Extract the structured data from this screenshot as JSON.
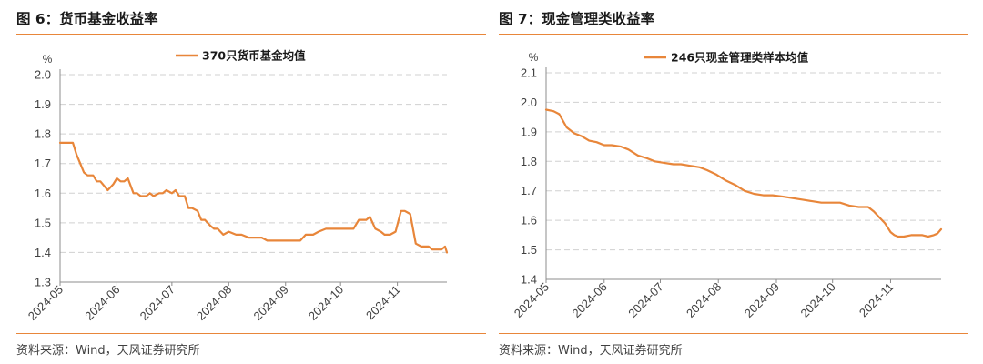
{
  "panels": [
    {
      "title": "图 6：货币基金收益率",
      "source": "资料来源：Wind，天风证券研究所",
      "color": "#e8863a"
    },
    {
      "title": "图 7：现金管理类收益率",
      "source": "资料来源：Wind，天风证券研究所",
      "color": "#e8863a"
    }
  ],
  "chart_data": [
    {
      "type": "line",
      "title": "",
      "ylabel": "%",
      "xlabel": "",
      "ylim": [
        1.3,
        2.0
      ],
      "yticks": [
        "1.3",
        "1.4",
        "1.5",
        "1.6",
        "1.7",
        "1.8",
        "1.9",
        "2.0"
      ],
      "xticks": [
        "2024-05",
        "2024-06",
        "2024-07",
        "2024-08",
        "2024-09",
        "2024-10",
        "2024-11"
      ],
      "xlim": [
        "2024-05-01",
        "2024-11-28"
      ],
      "grid": "horizontal dashed",
      "legend_position": "top-center",
      "series": [
        {
          "name": "370只货币基金均值",
          "color": "#e8863a",
          "x": [
            "2024-05-01",
            "2024-05-05",
            "2024-05-08",
            "2024-05-10",
            "2024-05-12",
            "2024-05-14",
            "2024-05-16",
            "2024-05-19",
            "2024-05-21",
            "2024-05-23",
            "2024-05-27",
            "2024-05-30",
            "2024-06-01",
            "2024-06-03",
            "2024-06-05",
            "2024-06-07",
            "2024-06-10",
            "2024-06-12",
            "2024-06-14",
            "2024-06-17",
            "2024-06-19",
            "2024-06-21",
            "2024-06-24",
            "2024-06-26",
            "2024-06-28",
            "2024-07-01",
            "2024-07-03",
            "2024-07-05",
            "2024-07-08",
            "2024-07-10",
            "2024-07-12",
            "2024-07-15",
            "2024-07-17",
            "2024-07-19",
            "2024-07-22",
            "2024-07-24",
            "2024-07-26",
            "2024-07-29",
            "2024-08-01",
            "2024-08-05",
            "2024-08-08",
            "2024-08-12",
            "2024-08-15",
            "2024-08-19",
            "2024-08-22",
            "2024-08-26",
            "2024-08-29",
            "2024-09-02",
            "2024-09-05",
            "2024-09-09",
            "2024-09-12",
            "2024-09-16",
            "2024-09-19",
            "2024-09-23",
            "2024-09-26",
            "2024-09-30",
            "2024-10-03",
            "2024-10-08",
            "2024-10-11",
            "2024-10-15",
            "2024-10-17",
            "2024-10-20",
            "2024-10-23",
            "2024-10-25",
            "2024-10-28",
            "2024-10-31",
            "2024-11-03",
            "2024-11-05",
            "2024-11-08",
            "2024-11-11",
            "2024-11-14",
            "2024-11-16",
            "2024-11-18",
            "2024-11-20",
            "2024-11-22",
            "2024-11-25",
            "2024-11-27",
            "2024-11-28"
          ],
          "values": [
            1.77,
            1.77,
            1.77,
            1.73,
            1.7,
            1.67,
            1.66,
            1.66,
            1.64,
            1.64,
            1.61,
            1.63,
            1.65,
            1.64,
            1.64,
            1.65,
            1.6,
            1.6,
            1.59,
            1.59,
            1.6,
            1.59,
            1.6,
            1.6,
            1.61,
            1.6,
            1.61,
            1.59,
            1.59,
            1.55,
            1.55,
            1.54,
            1.51,
            1.51,
            1.49,
            1.48,
            1.48,
            1.46,
            1.47,
            1.46,
            1.46,
            1.45,
            1.45,
            1.45,
            1.44,
            1.44,
            1.44,
            1.44,
            1.44,
            1.44,
            1.46,
            1.46,
            1.47,
            1.48,
            1.48,
            1.48,
            1.48,
            1.48,
            1.51,
            1.51,
            1.52,
            1.48,
            1.47,
            1.46,
            1.46,
            1.47,
            1.54,
            1.54,
            1.53,
            1.43,
            1.42,
            1.42,
            1.42,
            1.41,
            1.41,
            1.41,
            1.42,
            1.4
          ]
        }
      ]
    },
    {
      "type": "line",
      "title": "",
      "ylabel": "%",
      "xlabel": "",
      "ylim": [
        1.4,
        2.1
      ],
      "yticks": [
        "1.4",
        "1.5",
        "1.6",
        "1.7",
        "1.8",
        "1.9",
        "2.0",
        "2.1"
      ],
      "xticks": [
        "2024-05",
        "2024-06",
        "2024-07",
        "2024-08",
        "2024-09",
        "2024-10",
        "2024-11"
      ],
      "xlim": [
        "2024-05-01",
        "2024-11-28"
      ],
      "grid": "horizontal dashed",
      "legend_position": "top-center",
      "series": [
        {
          "name": "246只现金管理类样本均值",
          "color": "#e8863a",
          "x": [
            "2024-05-01",
            "2024-05-05",
            "2024-05-08",
            "2024-05-12",
            "2024-05-16",
            "2024-05-20",
            "2024-05-24",
            "2024-05-28",
            "2024-06-01",
            "2024-06-05",
            "2024-06-10",
            "2024-06-14",
            "2024-06-19",
            "2024-06-24",
            "2024-06-28",
            "2024-07-03",
            "2024-07-08",
            "2024-07-12",
            "2024-07-17",
            "2024-07-22",
            "2024-07-26",
            "2024-07-31",
            "2024-08-05",
            "2024-08-10",
            "2024-08-15",
            "2024-08-20",
            "2024-08-25",
            "2024-08-30",
            "2024-09-05",
            "2024-09-10",
            "2024-09-15",
            "2024-09-20",
            "2024-09-25",
            "2024-09-30",
            "2024-10-05",
            "2024-10-10",
            "2024-10-15",
            "2024-10-20",
            "2024-10-23",
            "2024-10-26",
            "2024-10-29",
            "2024-11-01",
            "2024-11-03",
            "2024-11-05",
            "2024-11-08",
            "2024-11-12",
            "2024-11-15",
            "2024-11-18",
            "2024-11-21",
            "2024-11-24",
            "2024-11-26",
            "2024-11-28"
          ],
          "values": [
            1.975,
            1.97,
            1.96,
            1.915,
            1.895,
            1.885,
            1.87,
            1.865,
            1.855,
            1.855,
            1.85,
            1.84,
            1.82,
            1.81,
            1.8,
            1.795,
            1.79,
            1.79,
            1.785,
            1.78,
            1.77,
            1.755,
            1.735,
            1.72,
            1.7,
            1.69,
            1.685,
            1.685,
            1.68,
            1.675,
            1.67,
            1.665,
            1.66,
            1.66,
            1.66,
            1.65,
            1.645,
            1.645,
            1.63,
            1.61,
            1.59,
            1.56,
            1.55,
            1.545,
            1.545,
            1.55,
            1.55,
            1.55,
            1.545,
            1.55,
            1.555,
            1.57
          ]
        }
      ]
    }
  ]
}
